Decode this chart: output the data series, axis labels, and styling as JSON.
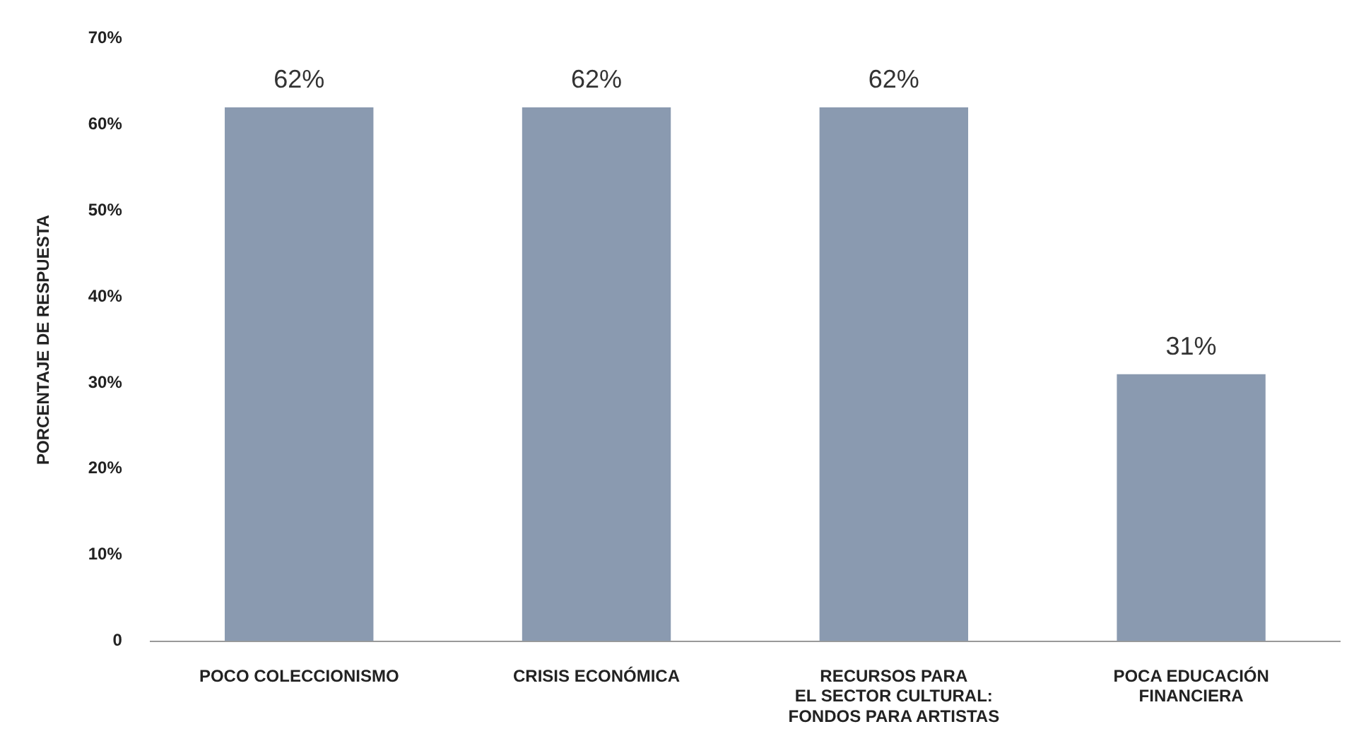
{
  "chart_data": {
    "type": "bar",
    "ylabel": "PORCENTAJE DE RESPUESTA",
    "categories": [
      "POCO COLECCIONISMO",
      "CRISIS ECONÓMICA",
      "RECURSOS PARA\nEL SECTOR CULTURAL:\nFONDOS PARA ARTISTAS",
      "POCA EDUCACIÓN\nFINANCIERA"
    ],
    "values": [
      62,
      62,
      62,
      31
    ],
    "value_labels": [
      "62%",
      "62%",
      "62%",
      "31%"
    ],
    "color": "#8a9ab0",
    "ylim": [
      0,
      70
    ],
    "yticks": [
      {
        "value": 0,
        "label": "0"
      },
      {
        "value": 10,
        "label": "10%"
      },
      {
        "value": 20,
        "label": "20%"
      },
      {
        "value": 30,
        "label": "30%"
      },
      {
        "value": 40,
        "label": "40%"
      },
      {
        "value": 50,
        "label": "50%"
      },
      {
        "value": 60,
        "label": "60%"
      },
      {
        "value": 70,
        "label": "70%"
      }
    ],
    "grid": false,
    "legend": false
  }
}
